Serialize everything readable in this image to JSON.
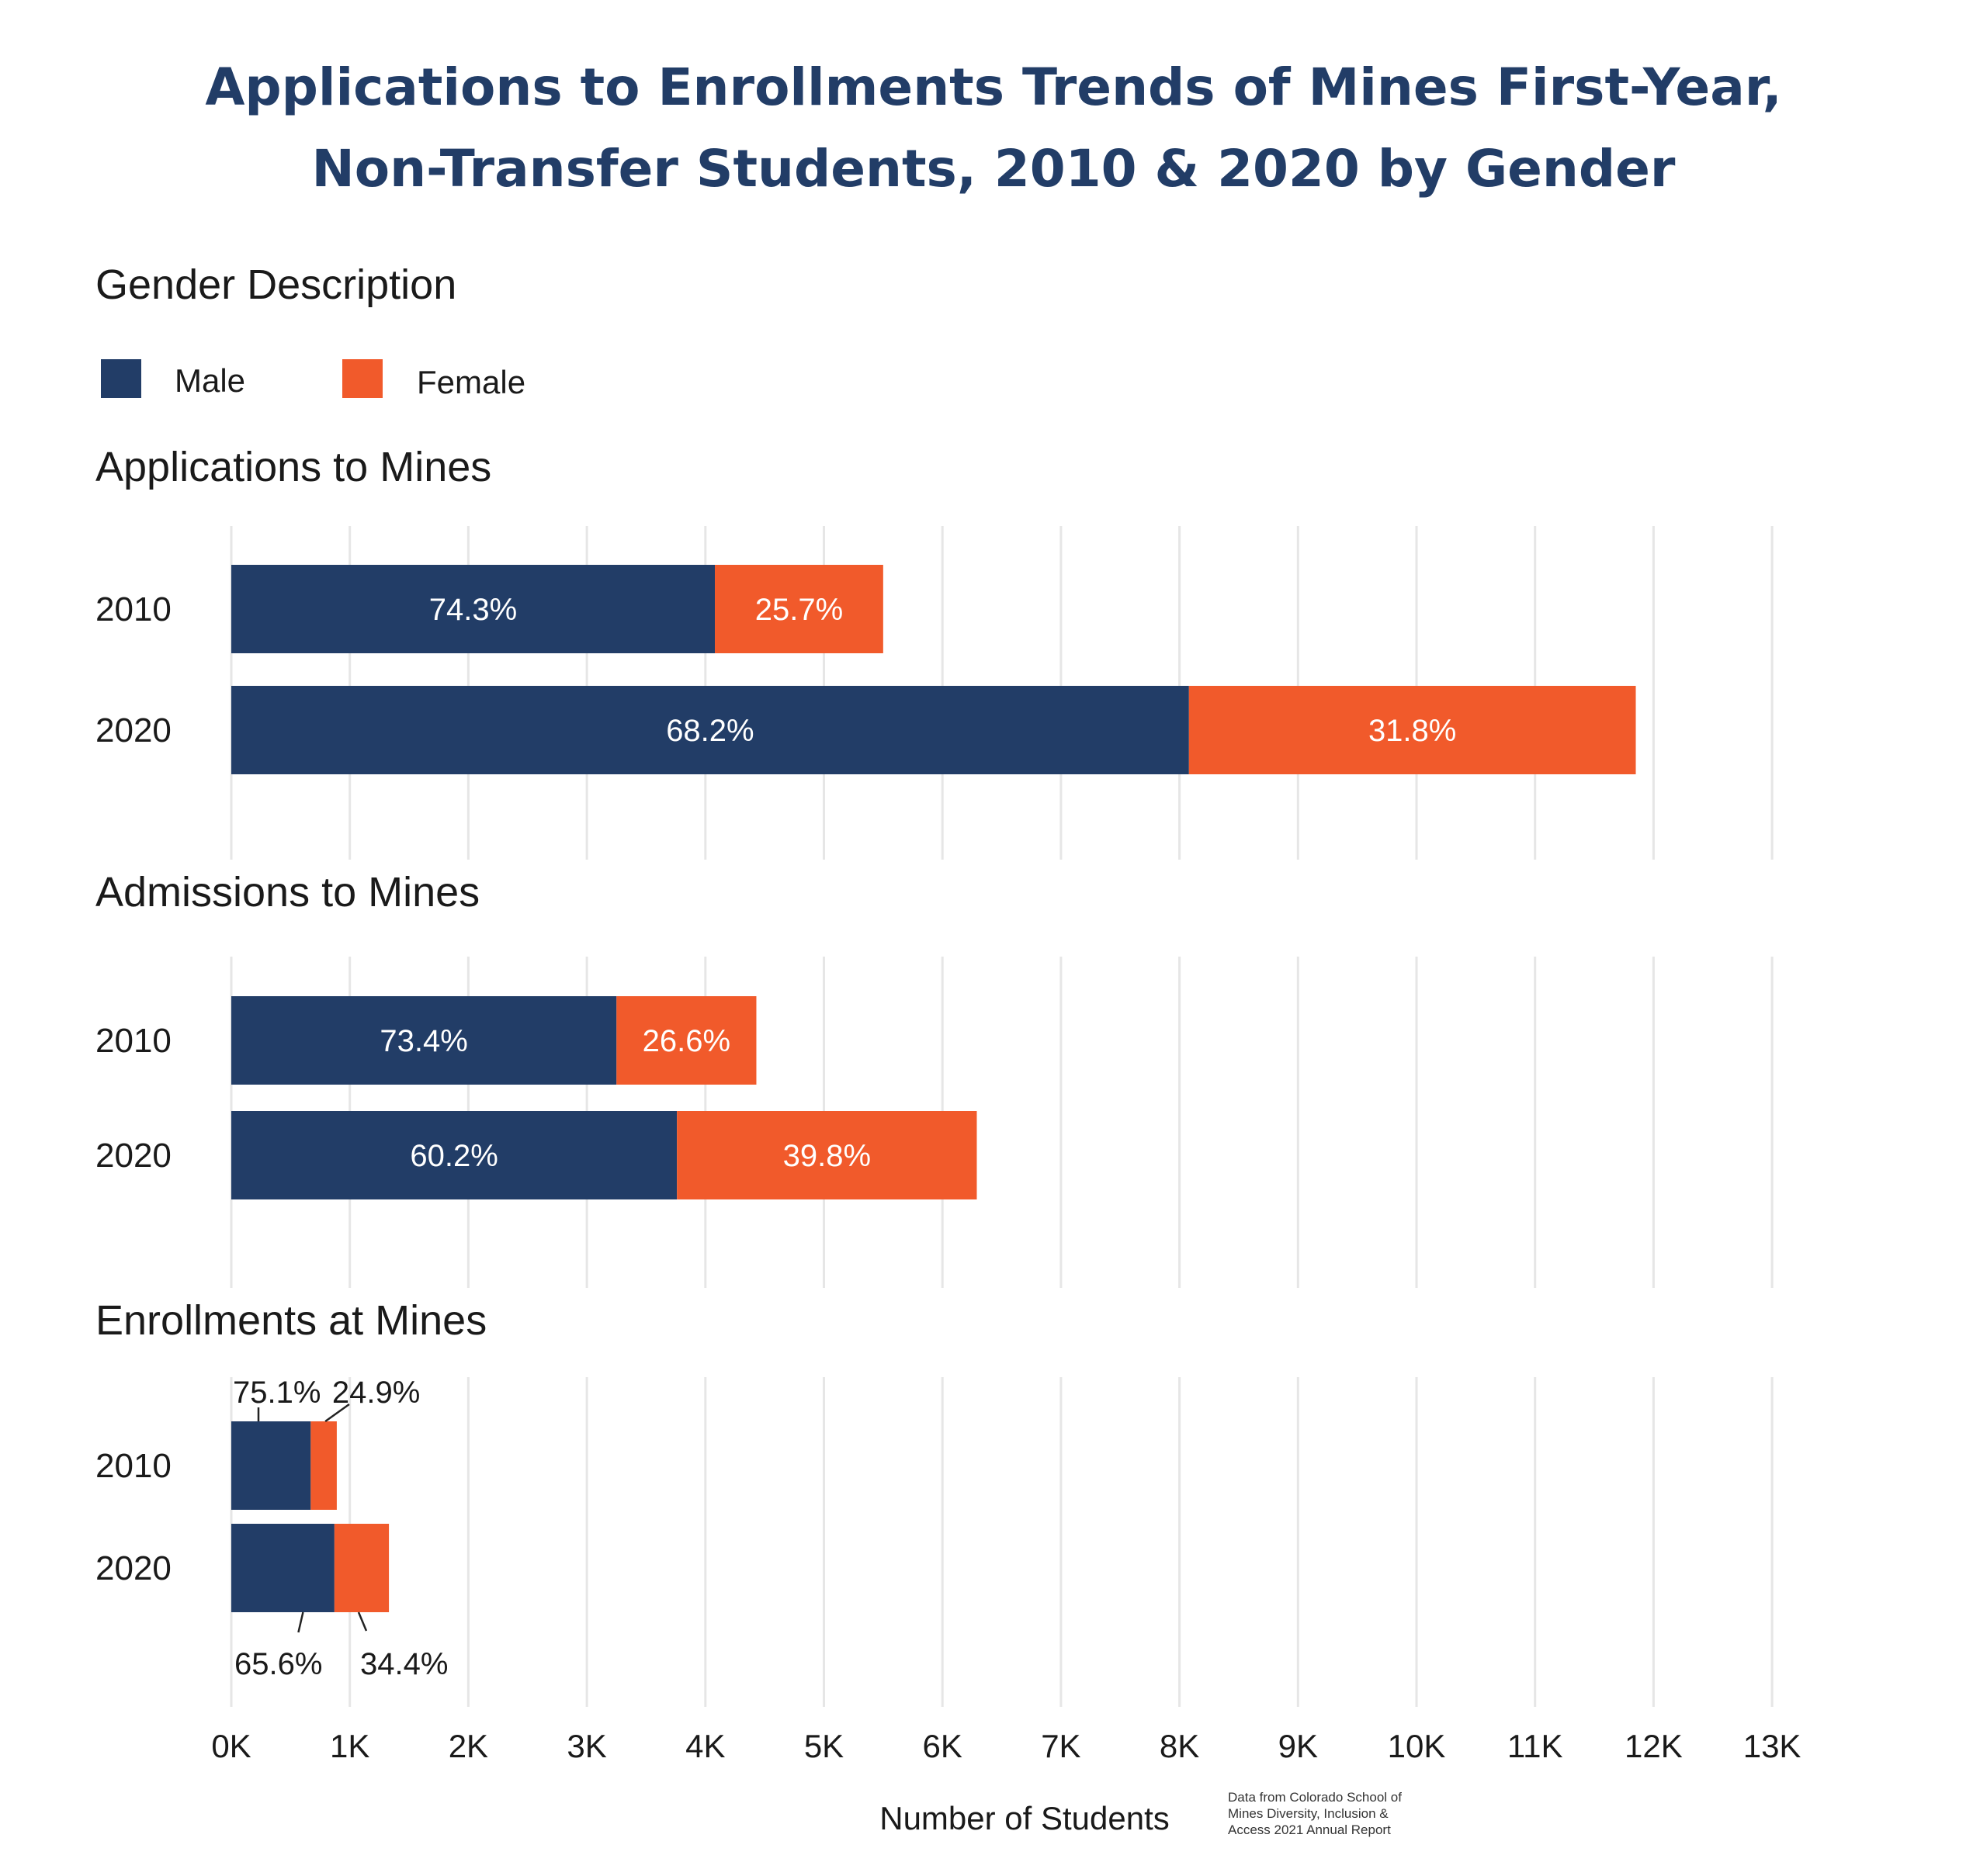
{
  "title_lines": [
    "Applications to Enrollments Trends of Mines First-Year,",
    "Non-Transfer Students, 2010 & 2020 by Gender"
  ],
  "legend": {
    "title": "Gender Description",
    "items": [
      {
        "label": "Male",
        "color": "#223d67"
      },
      {
        "label": "Female",
        "color": "#f15a2b"
      }
    ]
  },
  "chart_data": {
    "type": "bar",
    "orientation": "horizontal",
    "stacked": true,
    "xlabel": "Number of Students",
    "xlim": [
      0,
      13000
    ],
    "x_ticks": [
      "0K",
      "1K",
      "2K",
      "3K",
      "4K",
      "5K",
      "6K",
      "7K",
      "8K",
      "9K",
      "10K",
      "11K",
      "12K",
      "13K"
    ],
    "grid": "vertical",
    "panels": [
      {
        "title": "Applications to Mines",
        "categories": [
          "2010",
          "2020"
        ],
        "series": [
          {
            "name": "Male",
            "values": [
              4080,
              8080
            ],
            "labels": [
              "74.3%",
              "68.2%"
            ]
          },
          {
            "name": "Female",
            "values": [
              1420,
              3770
            ],
            "labels": [
              "25.7%",
              "31.8%"
            ]
          }
        ]
      },
      {
        "title": "Admissions to Mines",
        "categories": [
          "2010",
          "2020"
        ],
        "series": [
          {
            "name": "Male",
            "values": [
              3250,
              3760
            ],
            "labels": [
              "73.4%",
              "60.2%"
            ]
          },
          {
            "name": "Female",
            "values": [
              1180,
              2530
            ],
            "labels": [
              "26.6%",
              "39.8%"
            ]
          }
        ]
      },
      {
        "title": "Enrollments at Mines",
        "categories": [
          "2010",
          "2020"
        ],
        "series": [
          {
            "name": "Male",
            "values": [
              670,
              870
            ],
            "labels": [
              "75.1%",
              "65.6%"
            ]
          },
          {
            "name": "Female",
            "values": [
              220,
              460
            ],
            "labels": [
              "24.9%",
              "34.4%"
            ]
          }
        ]
      }
    ]
  },
  "source_note": [
    "Data from Colorado School of",
    "Mines Diversity, Inclusion &",
    "Access 2021 Annual Report"
  ]
}
